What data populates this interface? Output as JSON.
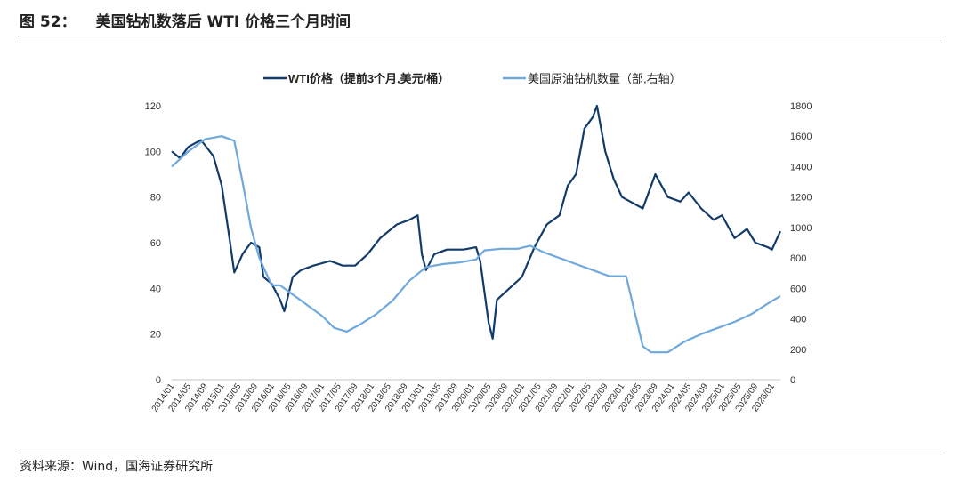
{
  "figure": {
    "number": "图 52：",
    "title": "美国钻机数落后 WTI 价格三个月时间",
    "source": "资料来源：Wind，国海证券研究所"
  },
  "chart_data": {
    "type": "line",
    "title": "美国钻机数落后 WTI 价格三个月时间",
    "legend_position": "top-center",
    "x_tick_labels": [
      "2014/01",
      "2014/05",
      "2014/09",
      "2015/01",
      "2015/05",
      "2015/09",
      "2016/01",
      "2016/05",
      "2016/09",
      "2017/01",
      "2017/05",
      "2017/09",
      "2018/01",
      "2018/05",
      "2018/09",
      "2019/01",
      "2019/05",
      "2019/09",
      "2020/01",
      "2020/05",
      "2020/09",
      "2021/01",
      "2021/05",
      "2021/09",
      "2022/01",
      "2022/05",
      "2022/09",
      "2023/01",
      "2023/05",
      "2023/09",
      "2024/01",
      "2024/05",
      "2024/09",
      "2025/01",
      "2025/05",
      "2025/09",
      "2026/01"
    ],
    "x_range": [
      "2014/01",
      "2026/03"
    ],
    "left_axis": {
      "min": 0,
      "max": 120,
      "ticks": [
        0,
        20,
        40,
        60,
        80,
        100,
        120
      ]
    },
    "right_axis": {
      "min": 0,
      "max": 1800,
      "ticks": [
        0,
        200,
        400,
        600,
        800,
        1000,
        1200,
        1400,
        1600,
        1800
      ]
    },
    "grid": false,
    "series": [
      {
        "name": "WTI价格（提前3个月,美元/桶）",
        "axis": "left",
        "color": "#123b6a",
        "points": [
          [
            "2014/01",
            100
          ],
          [
            "2014/03",
            97
          ],
          [
            "2014/05",
            102
          ],
          [
            "2014/08",
            105
          ],
          [
            "2014/11",
            98
          ],
          [
            "2015/01",
            85
          ],
          [
            "2015/03",
            60
          ],
          [
            "2015/04",
            47
          ],
          [
            "2015/06",
            55
          ],
          [
            "2015/08",
            60
          ],
          [
            "2015/10",
            58
          ],
          [
            "2015/11",
            45
          ],
          [
            "2016/01",
            42
          ],
          [
            "2016/03",
            35
          ],
          [
            "2016/04",
            30
          ],
          [
            "2016/06",
            45
          ],
          [
            "2016/08",
            48
          ],
          [
            "2016/11",
            50
          ],
          [
            "2017/03",
            52
          ],
          [
            "2017/06",
            50
          ],
          [
            "2017/09",
            50
          ],
          [
            "2017/12",
            55
          ],
          [
            "2018/03",
            62
          ],
          [
            "2018/07",
            68
          ],
          [
            "2018/10",
            70
          ],
          [
            "2018/12",
            72
          ],
          [
            "2019/01",
            55
          ],
          [
            "2019/02",
            48
          ],
          [
            "2019/04",
            55
          ],
          [
            "2019/07",
            57
          ],
          [
            "2019/11",
            57
          ],
          [
            "2020/02",
            58
          ],
          [
            "2020/03",
            52
          ],
          [
            "2020/05",
            25
          ],
          [
            "2020/06",
            18
          ],
          [
            "2020/07",
            35
          ],
          [
            "2020/10",
            40
          ],
          [
            "2021/01",
            45
          ],
          [
            "2021/04",
            58
          ],
          [
            "2021/07",
            68
          ],
          [
            "2021/10",
            72
          ],
          [
            "2021/12",
            85
          ],
          [
            "2022/02",
            90
          ],
          [
            "2022/04",
            110
          ],
          [
            "2022/06",
            115
          ],
          [
            "2022/07",
            120
          ],
          [
            "2022/09",
            100
          ],
          [
            "2022/11",
            88
          ],
          [
            "2023/01",
            80
          ],
          [
            "2023/03",
            78
          ],
          [
            "2023/06",
            75
          ],
          [
            "2023/09",
            90
          ],
          [
            "2023/12",
            80
          ],
          [
            "2024/03",
            78
          ],
          [
            "2024/05",
            82
          ],
          [
            "2024/08",
            75
          ],
          [
            "2024/11",
            70
          ],
          [
            "2025/01",
            72
          ],
          [
            "2025/04",
            62
          ],
          [
            "2025/07",
            66
          ],
          [
            "2025/09",
            60
          ],
          [
            "2025/12",
            58
          ],
          [
            "2026/01",
            57
          ],
          [
            "2026/03",
            65
          ]
        ]
      },
      {
        "name": "美国原油钻机数量（部,右轴）",
        "axis": "right",
        "color": "#6fa8dc",
        "points": [
          [
            "2014/01",
            1400
          ],
          [
            "2014/05",
            1500
          ],
          [
            "2014/09",
            1580
          ],
          [
            "2015/01",
            1600
          ],
          [
            "2015/04",
            1570
          ],
          [
            "2015/06",
            1300
          ],
          [
            "2015/08",
            1000
          ],
          [
            "2015/10",
            800
          ],
          [
            "2016/01",
            620
          ],
          [
            "2016/03",
            620
          ],
          [
            "2016/06",
            560
          ],
          [
            "2016/09",
            500
          ],
          [
            "2017/01",
            420
          ],
          [
            "2017/04",
            340
          ],
          [
            "2017/07",
            316
          ],
          [
            "2017/10",
            360
          ],
          [
            "2018/02",
            430
          ],
          [
            "2018/06",
            520
          ],
          [
            "2018/10",
            650
          ],
          [
            "2019/02",
            740
          ],
          [
            "2019/06",
            760
          ],
          [
            "2019/10",
            770
          ],
          [
            "2020/02",
            790
          ],
          [
            "2020/04",
            850
          ],
          [
            "2020/08",
            860
          ],
          [
            "2020/12",
            860
          ],
          [
            "2021/03",
            880
          ],
          [
            "2021/06",
            840
          ],
          [
            "2021/10",
            800
          ],
          [
            "2022/02",
            760
          ],
          [
            "2022/06",
            720
          ],
          [
            "2022/10",
            680
          ],
          [
            "2023/02",
            680
          ],
          [
            "2023/04",
            450
          ],
          [
            "2023/06",
            220
          ],
          [
            "2023/08",
            180
          ],
          [
            "2023/12",
            180
          ],
          [
            "2024/04",
            250
          ],
          [
            "2024/08",
            300
          ],
          [
            "2024/12",
            340
          ],
          [
            "2025/04",
            380
          ],
          [
            "2025/08",
            430
          ],
          [
            "2025/12",
            500
          ],
          [
            "2026/03",
            550
          ]
        ]
      }
    ]
  }
}
